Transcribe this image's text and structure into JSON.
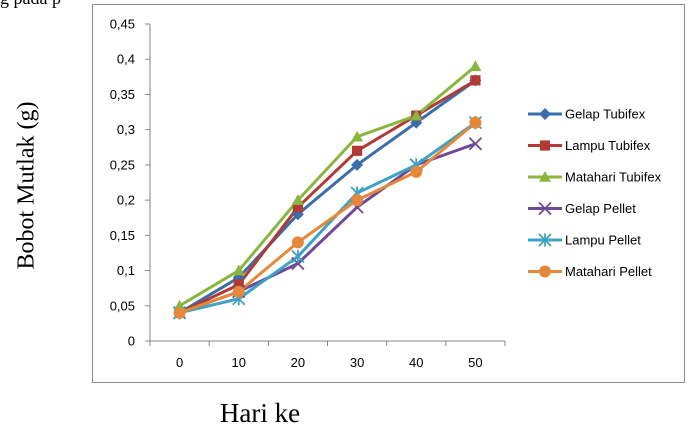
{
  "top_fragment": "g    pada p",
  "chart_data": {
    "type": "line",
    "title": "",
    "xlabel": "Hari ke",
    "ylabel": "Bobot Mutlak (g)",
    "x": [
      0,
      10,
      20,
      30,
      40,
      50
    ],
    "x_ticks": [
      "0",
      "10",
      "20",
      "30",
      "40",
      "50"
    ],
    "y_ticks": [
      "0",
      "0,05",
      "0,1",
      "0,15",
      "0,2",
      "0,25",
      "0,3",
      "0,35",
      "0,4",
      "0,45"
    ],
    "ylim": [
      0,
      0.45
    ],
    "grid": false,
    "legend_position": "right",
    "series": [
      {
        "name": "Gelap Tubifex",
        "color": "#3a6ea8",
        "marker": "diamond",
        "values": [
          0.04,
          0.09,
          0.18,
          0.25,
          0.31,
          0.37
        ]
      },
      {
        "name": "Lampu Tubifex",
        "color": "#b13a36",
        "marker": "square",
        "values": [
          0.04,
          0.08,
          0.19,
          0.27,
          0.32,
          0.37
        ]
      },
      {
        "name": "Matahari Tubifex",
        "color": "#8ab53e",
        "marker": "triangle",
        "values": [
          0.05,
          0.1,
          0.2,
          0.29,
          0.32,
          0.39
        ]
      },
      {
        "name": "Gelap Pellet",
        "color": "#6f4a97",
        "marker": "x",
        "values": [
          0.04,
          0.07,
          0.11,
          0.19,
          0.25,
          0.28
        ]
      },
      {
        "name": "Lampu Pellet",
        "color": "#3ea3c3",
        "marker": "star",
        "values": [
          0.04,
          0.06,
          0.12,
          0.21,
          0.25,
          0.31
        ]
      },
      {
        "name": "Matahari Pellet",
        "color": "#e6883a",
        "marker": "circle",
        "values": [
          0.04,
          0.07,
          0.14,
          0.2,
          0.24,
          0.31
        ]
      }
    ]
  }
}
